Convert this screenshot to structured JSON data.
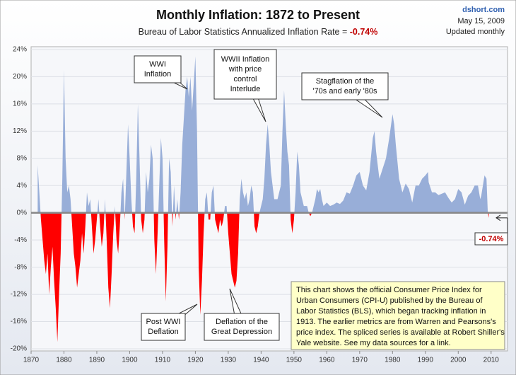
{
  "chart_data": {
    "type": "area",
    "title": "Monthly Inflation: 1872 to Present",
    "subtitle": "Bureau of Labor Statistics Annualized Inflation Rate = ",
    "current": {
      "value": -0.74,
      "label": "-0.74%"
    },
    "source": [
      "dshort.com",
      "May 15, 2009",
      "Updated monthly"
    ],
    "positive_color": "#98aed8",
    "negative_color": "#ff0000",
    "grid": true,
    "xlim": [
      1870,
      2015
    ],
    "xticks": [
      1870,
      1880,
      1890,
      1900,
      1910,
      1920,
      1930,
      1940,
      1950,
      1960,
      1970,
      1980,
      1990,
      2000,
      2010
    ],
    "ylim": [
      -20,
      24
    ],
    "yticks": [
      {
        "value": -20,
        "label": "-20%"
      },
      {
        "value": -16,
        "label": "-16%"
      },
      {
        "value": -12,
        "label": "-12%"
      },
      {
        "value": -8,
        "label": "-8%"
      },
      {
        "value": -4,
        "label": "-4%"
      },
      {
        "value": 0,
        "label": "0%"
      },
      {
        "value": 4,
        "label": "4%"
      },
      {
        "value": 8,
        "label": "8%"
      },
      {
        "value": 12,
        "label": "12%"
      },
      {
        "value": 16,
        "label": "16%"
      },
      {
        "value": 20,
        "label": "20%"
      },
      {
        "value": 24,
        "label": "24%"
      }
    ],
    "x": [
      1872,
      1872.5,
      1873,
      1873.5,
      1874,
      1874.5,
      1875,
      1875.5,
      1876,
      1876.5,
      1877,
      1877.5,
      1878,
      1878.5,
      1879,
      1879.5,
      1880,
      1880.5,
      1881,
      1881.5,
      1882,
      1882.5,
      1883,
      1883.5,
      1884,
      1884.5,
      1885,
      1885.5,
      1886,
      1886.5,
      1887,
      1887.5,
      1888,
      1888.5,
      1889,
      1889.5,
      1890,
      1890.5,
      1891,
      1891.5,
      1892,
      1892.5,
      1893,
      1893.5,
      1894,
      1894.5,
      1895,
      1895.5,
      1896,
      1896.5,
      1897,
      1897.5,
      1898,
      1898.5,
      1899,
      1899.5,
      1900,
      1900.5,
      1901,
      1901.5,
      1902,
      1902.5,
      1903,
      1903.5,
      1904,
      1904.5,
      1905,
      1905.5,
      1906,
      1906.5,
      1907,
      1907.5,
      1908,
      1908.5,
      1909,
      1909.5,
      1910,
      1910.5,
      1911,
      1911.5,
      1912,
      1912.5,
      1913,
      1913.5,
      1914,
      1914.5,
      1915,
      1915.5,
      1916,
      1916.5,
      1917,
      1917.5,
      1918,
      1918.5,
      1919,
      1919.5,
      1920,
      1920.5,
      1921,
      1921.5,
      1922,
      1922.5,
      1923,
      1923.5,
      1924,
      1924.5,
      1925,
      1925.5,
      1926,
      1926.5,
      1927,
      1927.5,
      1928,
      1928.5,
      1929,
      1929.5,
      1930,
      1930.5,
      1931,
      1931.5,
      1932,
      1932.5,
      1933,
      1933.5,
      1934,
      1934.5,
      1935,
      1935.5,
      1936,
      1936.5,
      1937,
      1937.5,
      1938,
      1938.5,
      1939,
      1939.5,
      1940,
      1940.5,
      1941,
      1941.5,
      1942,
      1942.5,
      1943,
      1943.5,
      1944,
      1944.5,
      1945,
      1945.5,
      1946,
      1946.5,
      1947,
      1947.5,
      1948,
      1948.5,
      1949,
      1949.5,
      1950,
      1950.5,
      1951,
      1951.5,
      1952,
      1952.5,
      1953,
      1953.5,
      1954,
      1954.5,
      1955,
      1955.5,
      1956,
      1956.5,
      1957,
      1957.5,
      1958,
      1958.5,
      1959,
      1960,
      1961,
      1962,
      1963,
      1964,
      1965,
      1966,
      1967,
      1968,
      1969,
      1970,
      1971,
      1972,
      1973,
      1974,
      1974.5,
      1975,
      1976,
      1977,
      1978,
      1979,
      1980,
      1980.5,
      1981,
      1982,
      1983,
      1984,
      1985,
      1986,
      1987,
      1988,
      1989,
      1990,
      1990.8,
      1991,
      1992,
      1993,
      1994,
      1995,
      1996,
      1997,
      1998,
      1999,
      2000,
      2001,
      2002,
      2003,
      2004,
      2005,
      2006,
      2006.7,
      2007,
      2008,
      2008.6,
      2009,
      2009.3
    ],
    "series": [
      {
        "name": "Annualized Inflation Rate",
        "values": [
          7,
          3,
          -1,
          -4,
          -7,
          -9,
          -6,
          -12,
          -8,
          -5,
          -10,
          -14,
          -19,
          -12,
          -6,
          5,
          21,
          8,
          3,
          4,
          2,
          -2,
          -6,
          -8,
          -11,
          -9,
          -7,
          -3,
          -6,
          -2,
          3,
          1,
          2,
          -2,
          -6,
          -4,
          -1,
          2,
          -2,
          -5,
          -3,
          2,
          -4,
          -11,
          -14,
          -9,
          -3,
          1,
          -4,
          -6,
          -2,
          3,
          5,
          -1,
          6,
          13,
          8,
          2,
          -2,
          -3,
          5,
          16,
          8,
          -1,
          -3,
          -1,
          6,
          3,
          5,
          10,
          8,
          -4,
          -9,
          -3,
          4,
          11,
          8,
          -4,
          -13,
          -5,
          8,
          6,
          -2,
          4,
          -1,
          2,
          -1,
          3,
          10,
          14,
          18,
          20,
          17,
          20,
          15,
          19,
          23,
          12,
          -8,
          -15,
          -10,
          -3,
          2,
          3,
          -1,
          -1,
          3,
          4,
          -1,
          -2,
          -3,
          -1,
          -2,
          -1,
          1,
          1,
          -3,
          -6,
          -9,
          -10,
          -11,
          -10,
          -6,
          2,
          5,
          3,
          2,
          3,
          1,
          2,
          4,
          3,
          -2,
          -3,
          -2,
          0,
          1,
          2,
          5,
          10,
          13,
          10,
          6,
          4,
          2,
          2,
          2,
          3,
          4,
          12,
          18,
          13,
          9,
          7,
          -1,
          -3,
          -1,
          3,
          9,
          7,
          3,
          2,
          1,
          1,
          1,
          0,
          -0.5,
          0,
          1,
          2,
          3.5,
          3,
          3.5,
          2,
          1,
          1.5,
          1,
          1.2,
          1.5,
          1.3,
          1.8,
          3,
          2.8,
          4,
          5.5,
          6,
          4,
          3.3,
          6,
          11,
          12,
          9,
          5,
          6.5,
          8,
          11,
          14.5,
          13,
          10,
          5,
          3,
          4.3,
          3.5,
          1.5,
          4,
          4,
          5,
          5.5,
          6,
          4.5,
          3,
          3,
          2.6,
          2.8,
          3,
          2.2,
          1.5,
          2,
          3.5,
          3,
          1.2,
          2.5,
          3,
          4,
          4,
          2,
          2.5,
          5.5,
          5,
          0,
          -0.74
        ]
      }
    ],
    "annotations": [
      {
        "lines": [
          "WWI",
          "Inflation"
        ]
      },
      {
        "lines": [
          "WWII Inflation",
          "with price",
          "control",
          "Interlude"
        ]
      },
      {
        "lines": [
          "Stagflation of the",
          "'70s and early '80s"
        ]
      },
      {
        "lines": [
          "Post WWI",
          "Deflation"
        ]
      },
      {
        "lines": [
          "Deflation of the",
          "Great Depression"
        ]
      }
    ],
    "note": [
      "This chart shows the official Consumer Price Index for",
      "Urban Consumers (CPI-U) published by the Bureau of",
      "Labor Statistics (BLS), which began tracking inflation in",
      "1913.  The earlier metrics are from Warren and Pearsons's",
      "price index. The spliced series is available at Robert Shiller's",
      "Yale website. See my data sources for a link."
    ]
  }
}
